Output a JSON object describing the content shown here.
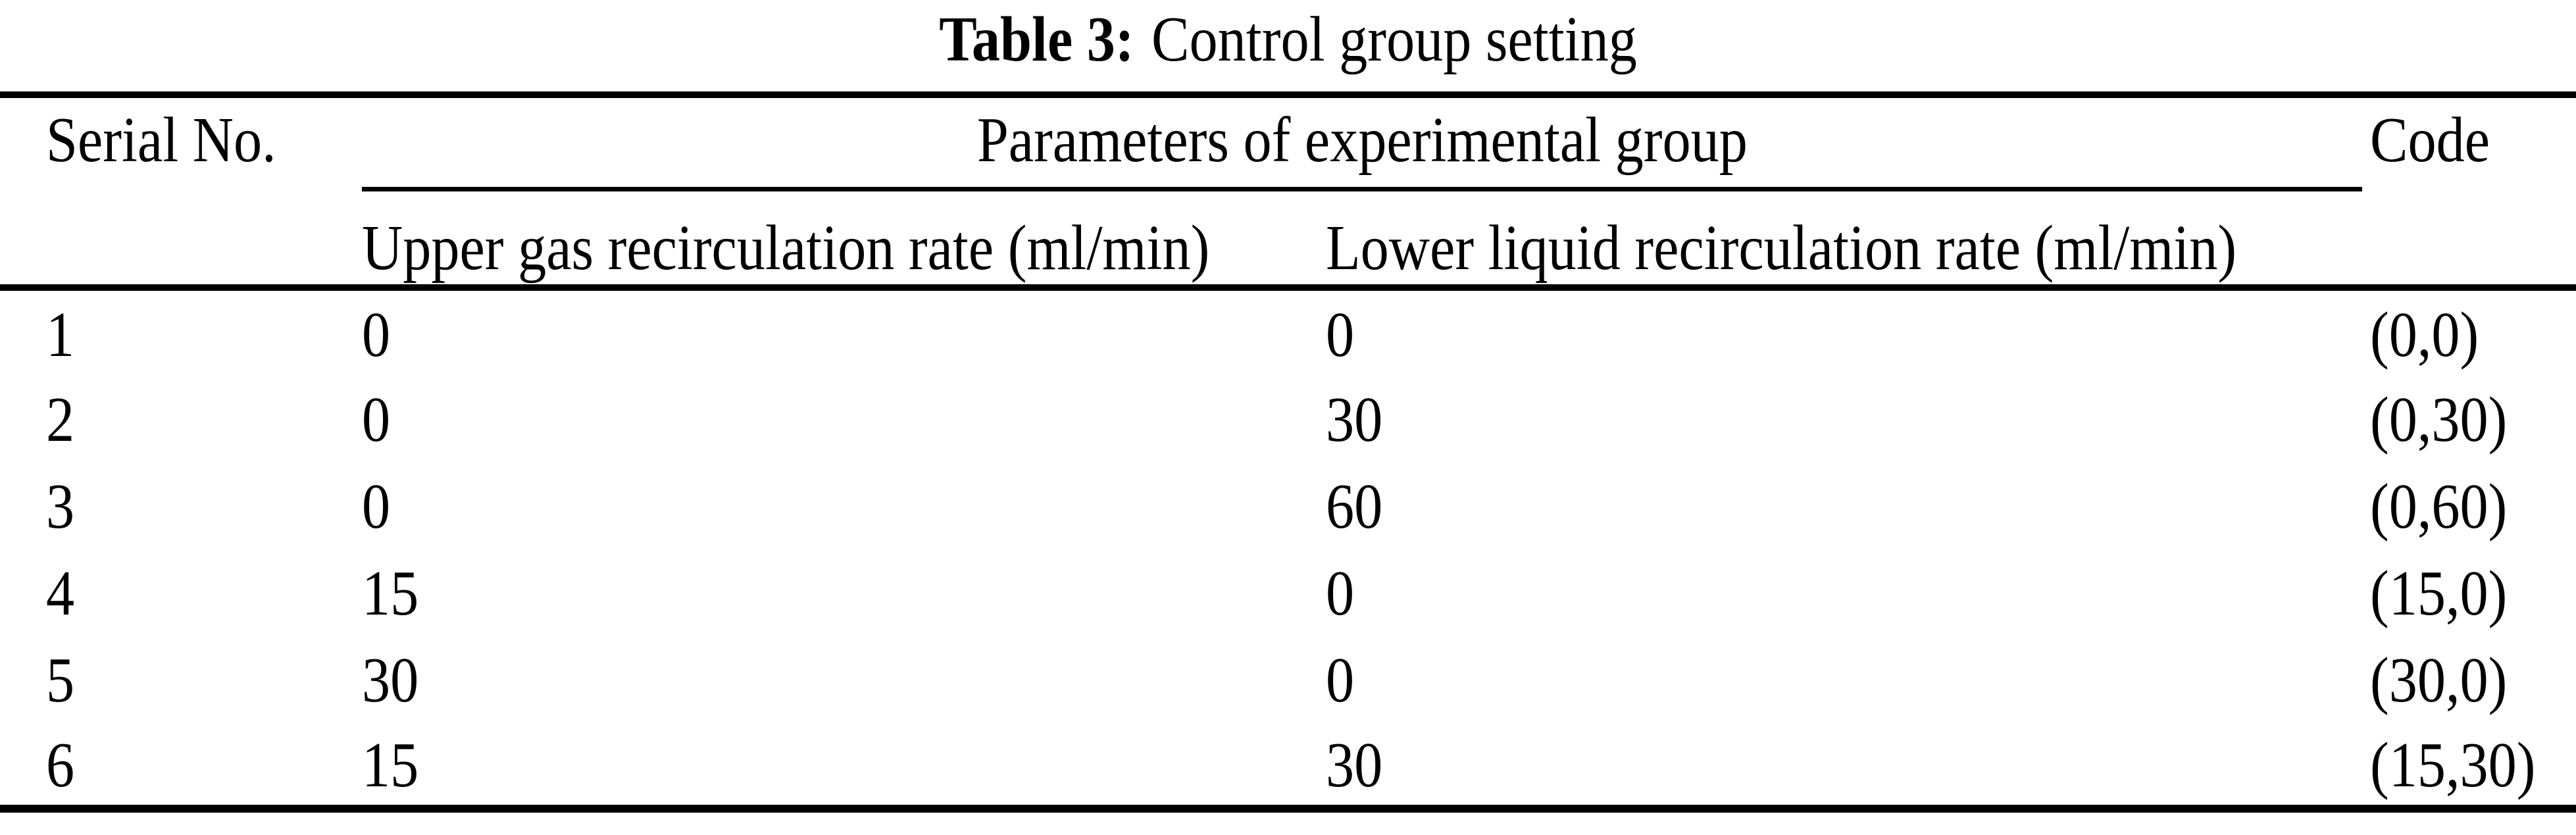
{
  "colors": {
    "background": "#ffffff",
    "text": "#000000",
    "rule": "#000000"
  },
  "caption": {
    "label": "Table 3:",
    "title": "Control group setting"
  },
  "table": {
    "headers": {
      "serial": "Serial No.",
      "parameters_group": "Parameters of experimental group",
      "code": "Code",
      "upper_rate": "Upper gas recirculation rate (ml/min)",
      "lower_rate": "Lower liquid recirculation rate (ml/min)"
    },
    "rows": [
      {
        "serial": "1",
        "upper": "0",
        "lower": "0",
        "code": "(0,0)"
      },
      {
        "serial": "2",
        "upper": "0",
        "lower": "30",
        "code": "(0,30)"
      },
      {
        "serial": "3",
        "upper": "0",
        "lower": "60",
        "code": "(0,60)"
      },
      {
        "serial": "4",
        "upper": "15",
        "lower": "0",
        "code": "(15,0)"
      },
      {
        "serial": "5",
        "upper": "30",
        "lower": "0",
        "code": "(30,0)"
      },
      {
        "serial": "6",
        "upper": "15",
        "lower": "30",
        "code": "(15,30)"
      }
    ]
  }
}
